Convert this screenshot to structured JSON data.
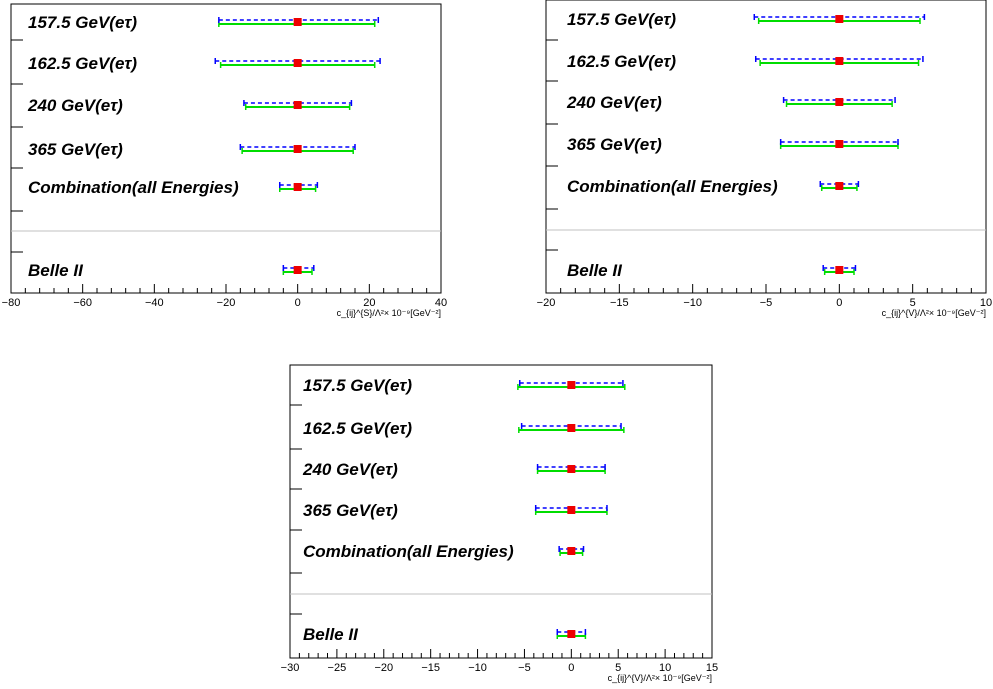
{
  "chart_data": [
    {
      "type": "errorbar",
      "xlabel": "c_{ij}^{S}/Λ²× 10⁻⁹[GeV⁻²]",
      "xlim": [
        -80,
        40
      ],
      "xticks": [
        -80,
        -60,
        -40,
        -20,
        0,
        20,
        40
      ],
      "rows": [
        {
          "label": "157.5 GeV(eτ)",
          "center": 0,
          "green": [
            -22,
            21.5
          ],
          "blue": [
            -22,
            22.5
          ]
        },
        {
          "label": "162.5 GeV(eτ)",
          "center": 0,
          "green": [
            -21.5,
            21.5
          ],
          "blue": [
            -23,
            23
          ]
        },
        {
          "label": "240 GeV(eτ)",
          "center": 0,
          "green": [
            -14.5,
            14.5
          ],
          "blue": [
            -15,
            15
          ]
        },
        {
          "label": "365 GeV(eτ)",
          "center": 0,
          "green": [
            -15.5,
            15.5
          ],
          "blue": [
            -16,
            16
          ]
        },
        {
          "label": "Combination(all Energies)",
          "center": 0,
          "green": [
            -5,
            5
          ],
          "blue": [
            -5,
            5.5
          ]
        },
        {
          "label": "Belle II",
          "center": 0,
          "green": [
            -4,
            4
          ],
          "blue": [
            -4,
            4.5
          ]
        }
      ]
    },
    {
      "type": "errorbar",
      "xlabel": "c_{ij}^{V}/Λ²× 10⁻⁹[GeV⁻²]",
      "xlim": [
        -20,
        10
      ],
      "xticks": [
        -20,
        -15,
        -10,
        -5,
        0,
        5,
        10
      ],
      "rows": [
        {
          "label": "157.5 GeV(eτ)",
          "center": 0,
          "green": [
            -5.5,
            5.5
          ],
          "blue": [
            -5.8,
            5.8
          ]
        },
        {
          "label": "162.5 GeV(eτ)",
          "center": 0,
          "green": [
            -5.4,
            5.4
          ],
          "blue": [
            -5.7,
            5.7
          ]
        },
        {
          "label": "240 GeV(eτ)",
          "center": 0,
          "green": [
            -3.6,
            3.6
          ],
          "blue": [
            -3.8,
            3.8
          ]
        },
        {
          "label": "365 GeV(eτ)",
          "center": 0,
          "green": [
            -4,
            4
          ],
          "blue": [
            -4,
            4
          ]
        },
        {
          "label": "Combination(all Energies)",
          "center": 0,
          "green": [
            -1.2,
            1.2
          ],
          "blue": [
            -1.3,
            1.3
          ]
        },
        {
          "label": "Belle II",
          "center": 0,
          "green": [
            -1,
            1
          ],
          "blue": [
            -1.1,
            1.1
          ]
        }
      ]
    },
    {
      "type": "errorbar",
      "xlabel": "c_{ij}^{V}/Λ²× 10⁻⁹[GeV⁻²]",
      "xlim": [
        -30,
        15
      ],
      "xticks": [
        -30,
        -25,
        -20,
        -15,
        -10,
        -5,
        0,
        5,
        10,
        15
      ],
      "rows": [
        {
          "label": "157.5 GeV(eτ)",
          "center": 0,
          "green": [
            -5.7,
            5.7
          ],
          "blue": [
            -5.5,
            5.5
          ]
        },
        {
          "label": "162.5 GeV(eτ)",
          "center": 0,
          "green": [
            -5.6,
            5.6
          ],
          "blue": [
            -5.3,
            5.3
          ]
        },
        {
          "label": "240 GeV(eτ)",
          "center": 0,
          "green": [
            -3.6,
            3.6
          ],
          "blue": [
            -3.6,
            3.6
          ]
        },
        {
          "label": "365 GeV(eτ)",
          "center": 0,
          "green": [
            -3.8,
            3.8
          ],
          "blue": [
            -3.8,
            3.8
          ]
        },
        {
          "label": "Combination(all Energies)",
          "center": 0,
          "green": [
            -1.2,
            1.2
          ],
          "blue": [
            -1.3,
            1.3
          ]
        },
        {
          "label": "Belle II",
          "center": 0,
          "green": [
            -1.5,
            1.5
          ],
          "blue": [
            -1.5,
            1.5
          ]
        }
      ]
    }
  ],
  "colors": {
    "green": "#00dd00",
    "blue": "#0000ff",
    "marker": "#ee0000",
    "separator": "#c0c0c0"
  }
}
